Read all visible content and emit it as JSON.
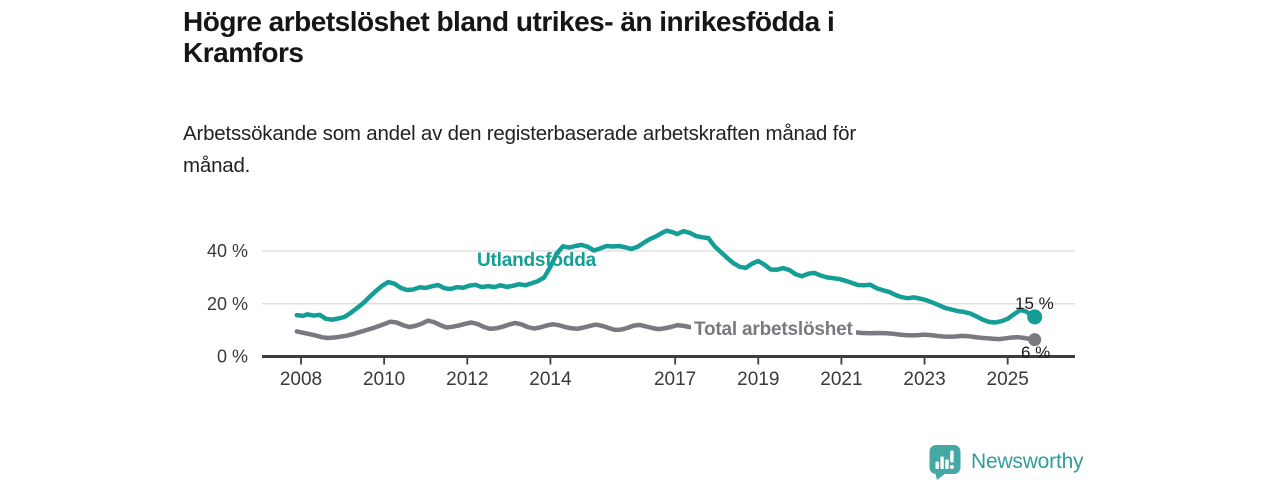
{
  "header": {
    "title_lines": [
      "Högre arbetslöshet bland utrikes- än inrikesfödda i",
      "Kramfors"
    ],
    "subtitle_lines": [
      "Arbetssökande som andel av den registerbaserade arbetskraften månad för",
      "månad."
    ]
  },
  "footer": {
    "brand": "Newsworthy",
    "logo_icon": "bar-chart-speech-bubble-icon",
    "brand_color": "#2e9e9b"
  },
  "chart_data": {
    "type": "line",
    "title": "Högre arbetslöshet bland utrikes- än inrikesfödda i Kramfors",
    "subtitle": "Arbetssökande som andel av den registerbaserade arbetskraften månad för månad.",
    "xlabel": "",
    "ylabel": "",
    "xlim": [
      2007.8,
      2026.6
    ],
    "ylim": [
      0,
      50
    ],
    "grid": "horizontal",
    "grid_color": "#dadada",
    "axis_color": "#3d3d3d",
    "axis_text_color": "#3a3a3a",
    "value_label_color": "#1b1b1b",
    "x_ticks": [
      2008,
      2010,
      2012,
      2014,
      2017,
      2019,
      2021,
      2023,
      2025
    ],
    "y_ticks": [
      {
        "value": 0,
        "label": "0 %"
      },
      {
        "value": 20,
        "label": "20 %"
      },
      {
        "value": 40,
        "label": "40 %"
      }
    ],
    "legend_position": "inline-labels",
    "series": [
      {
        "id": "utlandsfodda",
        "name": "Utlandsfödda",
        "color": "#149e96",
        "end_label": "15 %",
        "end_value": 15,
        "points": [
          [
            2007.9,
            15.7
          ],
          [
            2008.05,
            15.4
          ],
          [
            2008.15,
            16.0
          ],
          [
            2008.3,
            15.5
          ],
          [
            2008.45,
            15.8
          ],
          [
            2008.6,
            14.3
          ],
          [
            2008.75,
            14.0
          ],
          [
            2008.9,
            14.4
          ],
          [
            2009.05,
            15.0
          ],
          [
            2009.2,
            16.6
          ],
          [
            2009.35,
            18.4
          ],
          [
            2009.5,
            20.3
          ],
          [
            2009.65,
            22.6
          ],
          [
            2009.8,
            24.8
          ],
          [
            2009.95,
            26.8
          ],
          [
            2010.1,
            28.2
          ],
          [
            2010.25,
            27.6
          ],
          [
            2010.4,
            26.0
          ],
          [
            2010.55,
            25.2
          ],
          [
            2010.7,
            25.4
          ],
          [
            2010.85,
            26.2
          ],
          [
            2011.0,
            26.0
          ],
          [
            2011.15,
            26.6
          ],
          [
            2011.3,
            27.1
          ],
          [
            2011.45,
            25.9
          ],
          [
            2011.6,
            25.6
          ],
          [
            2011.75,
            26.3
          ],
          [
            2011.9,
            26.1
          ],
          [
            2012.05,
            26.9
          ],
          [
            2012.2,
            27.2
          ],
          [
            2012.35,
            26.3
          ],
          [
            2012.5,
            26.7
          ],
          [
            2012.65,
            26.3
          ],
          [
            2012.8,
            27.0
          ],
          [
            2012.95,
            26.4
          ],
          [
            2013.1,
            26.8
          ],
          [
            2013.25,
            27.4
          ],
          [
            2013.4,
            27.0
          ],
          [
            2013.55,
            27.8
          ],
          [
            2013.7,
            28.6
          ],
          [
            2013.85,
            30.0
          ],
          [
            2014.0,
            34.0
          ],
          [
            2014.15,
            39.0
          ],
          [
            2014.3,
            41.8
          ],
          [
            2014.45,
            41.3
          ],
          [
            2014.6,
            41.9
          ],
          [
            2014.75,
            42.3
          ],
          [
            2014.9,
            41.6
          ],
          [
            2015.05,
            40.2
          ],
          [
            2015.2,
            41.0
          ],
          [
            2015.35,
            41.9
          ],
          [
            2015.5,
            41.7
          ],
          [
            2015.65,
            41.9
          ],
          [
            2015.8,
            41.4
          ],
          [
            2015.95,
            40.8
          ],
          [
            2016.1,
            41.6
          ],
          [
            2016.25,
            43.2
          ],
          [
            2016.4,
            44.6
          ],
          [
            2016.55,
            45.6
          ],
          [
            2016.7,
            47.0
          ],
          [
            2016.8,
            47.7
          ],
          [
            2016.95,
            47.1
          ],
          [
            2017.05,
            46.4
          ],
          [
            2017.2,
            47.5
          ],
          [
            2017.35,
            46.9
          ],
          [
            2017.5,
            45.7
          ],
          [
            2017.65,
            45.2
          ],
          [
            2017.8,
            44.9
          ],
          [
            2017.95,
            41.8
          ],
          [
            2018.1,
            39.6
          ],
          [
            2018.25,
            37.4
          ],
          [
            2018.4,
            35.4
          ],
          [
            2018.55,
            34.0
          ],
          [
            2018.7,
            33.6
          ],
          [
            2018.85,
            35.2
          ],
          [
            2019.0,
            36.2
          ],
          [
            2019.15,
            34.8
          ],
          [
            2019.3,
            33.0
          ],
          [
            2019.45,
            32.9
          ],
          [
            2019.6,
            33.5
          ],
          [
            2019.75,
            32.8
          ],
          [
            2019.9,
            31.2
          ],
          [
            2020.05,
            30.4
          ],
          [
            2020.2,
            31.4
          ],
          [
            2020.35,
            31.7
          ],
          [
            2020.5,
            30.7
          ],
          [
            2020.65,
            30.0
          ],
          [
            2020.8,
            29.7
          ],
          [
            2020.95,
            29.4
          ],
          [
            2021.1,
            28.7
          ],
          [
            2021.25,
            27.9
          ],
          [
            2021.4,
            27.1
          ],
          [
            2021.55,
            27.0
          ],
          [
            2021.7,
            27.2
          ],
          [
            2021.85,
            25.9
          ],
          [
            2022.0,
            25.1
          ],
          [
            2022.15,
            24.5
          ],
          [
            2022.3,
            23.3
          ],
          [
            2022.45,
            22.5
          ],
          [
            2022.6,
            22.1
          ],
          [
            2022.75,
            22.4
          ],
          [
            2022.9,
            21.9
          ],
          [
            2023.05,
            21.3
          ],
          [
            2023.2,
            20.4
          ],
          [
            2023.35,
            19.4
          ],
          [
            2023.5,
            18.4
          ],
          [
            2023.65,
            17.8
          ],
          [
            2023.8,
            17.2
          ],
          [
            2023.95,
            16.9
          ],
          [
            2024.1,
            16.3
          ],
          [
            2024.25,
            15.2
          ],
          [
            2024.4,
            14.0
          ],
          [
            2024.55,
            13.1
          ],
          [
            2024.7,
            12.9
          ],
          [
            2024.85,
            13.4
          ],
          [
            2025.0,
            14.3
          ],
          [
            2025.15,
            16.0
          ],
          [
            2025.3,
            17.6
          ],
          [
            2025.42,
            17.2
          ],
          [
            2025.55,
            16.0
          ],
          [
            2025.65,
            15.0
          ]
        ]
      },
      {
        "id": "total",
        "name": "Total arbetslöshet",
        "color": "#797980",
        "end_label": "6 %",
        "end_value": 6,
        "points": [
          [
            2007.9,
            9.5
          ],
          [
            2008.05,
            9.0
          ],
          [
            2008.2,
            8.5
          ],
          [
            2008.35,
            8.0
          ],
          [
            2008.5,
            7.3
          ],
          [
            2008.65,
            7.0
          ],
          [
            2008.8,
            7.2
          ],
          [
            2008.95,
            7.5
          ],
          [
            2009.1,
            7.9
          ],
          [
            2009.25,
            8.5
          ],
          [
            2009.4,
            9.2
          ],
          [
            2009.55,
            9.9
          ],
          [
            2009.7,
            10.6
          ],
          [
            2009.85,
            11.4
          ],
          [
            2010.0,
            12.3
          ],
          [
            2010.15,
            13.2
          ],
          [
            2010.3,
            12.9
          ],
          [
            2010.45,
            11.9
          ],
          [
            2010.6,
            11.2
          ],
          [
            2010.75,
            11.6
          ],
          [
            2010.9,
            12.4
          ],
          [
            2011.05,
            13.6
          ],
          [
            2011.2,
            13.0
          ],
          [
            2011.35,
            11.9
          ],
          [
            2011.5,
            11.0
          ],
          [
            2011.65,
            11.3
          ],
          [
            2011.8,
            11.8
          ],
          [
            2011.95,
            12.4
          ],
          [
            2012.1,
            12.9
          ],
          [
            2012.25,
            12.3
          ],
          [
            2012.4,
            11.2
          ],
          [
            2012.55,
            10.5
          ],
          [
            2012.7,
            10.7
          ],
          [
            2012.85,
            11.3
          ],
          [
            2013.0,
            12.1
          ],
          [
            2013.15,
            12.7
          ],
          [
            2013.3,
            12.2
          ],
          [
            2013.45,
            11.2
          ],
          [
            2013.6,
            10.6
          ],
          [
            2013.75,
            11.0
          ],
          [
            2013.9,
            11.7
          ],
          [
            2014.05,
            12.2
          ],
          [
            2014.2,
            11.9
          ],
          [
            2014.35,
            11.2
          ],
          [
            2014.5,
            10.7
          ],
          [
            2014.65,
            10.5
          ],
          [
            2014.8,
            11.0
          ],
          [
            2014.95,
            11.6
          ],
          [
            2015.1,
            12.1
          ],
          [
            2015.25,
            11.6
          ],
          [
            2015.4,
            10.8
          ],
          [
            2015.55,
            10.1
          ],
          [
            2015.7,
            10.2
          ],
          [
            2015.85,
            10.8
          ],
          [
            2016.0,
            11.7
          ],
          [
            2016.15,
            12.0
          ],
          [
            2016.3,
            11.4
          ],
          [
            2016.45,
            10.8
          ],
          [
            2016.6,
            10.4
          ],
          [
            2016.75,
            10.7
          ],
          [
            2016.9,
            11.2
          ],
          [
            2017.05,
            11.9
          ],
          [
            2017.2,
            11.6
          ],
          [
            2017.35,
            11.2
          ],
          [
            2017.5,
            10.9
          ],
          [
            2017.7,
            10.5
          ],
          [
            2017.9,
            10.7
          ],
          [
            2018.1,
            10.9
          ],
          [
            2018.3,
            10.3
          ],
          [
            2018.5,
            9.7
          ],
          [
            2018.7,
            9.5
          ],
          [
            2018.9,
            9.8
          ],
          [
            2019.1,
            9.9
          ],
          [
            2019.3,
            9.4
          ],
          [
            2019.5,
            9.0
          ],
          [
            2019.7,
            8.8
          ],
          [
            2019.9,
            9.1
          ],
          [
            2020.1,
            9.5
          ],
          [
            2020.3,
            9.9
          ],
          [
            2020.5,
            9.8
          ],
          [
            2020.7,
            9.6
          ],
          [
            2020.9,
            9.7
          ],
          [
            2021.1,
            9.5
          ],
          [
            2021.3,
            9.2
          ],
          [
            2021.5,
            8.9
          ],
          [
            2021.7,
            8.8
          ],
          [
            2021.9,
            8.9
          ],
          [
            2022.1,
            8.8
          ],
          [
            2022.25,
            8.6
          ],
          [
            2022.4,
            8.3
          ],
          [
            2022.55,
            8.1
          ],
          [
            2022.7,
            8.0
          ],
          [
            2022.85,
            8.1
          ],
          [
            2023.0,
            8.3
          ],
          [
            2023.15,
            8.1
          ],
          [
            2023.3,
            7.8
          ],
          [
            2023.45,
            7.6
          ],
          [
            2023.6,
            7.5
          ],
          [
            2023.75,
            7.6
          ],
          [
            2023.9,
            7.8
          ],
          [
            2024.05,
            7.7
          ],
          [
            2024.2,
            7.4
          ],
          [
            2024.35,
            7.1
          ],
          [
            2024.5,
            6.9
          ],
          [
            2024.65,
            6.7
          ],
          [
            2024.8,
            6.6
          ],
          [
            2024.95,
            6.9
          ],
          [
            2025.1,
            7.2
          ],
          [
            2025.25,
            7.3
          ],
          [
            2025.4,
            7.0
          ],
          [
            2025.55,
            6.6
          ],
          [
            2025.65,
            6.4
          ]
        ]
      }
    ]
  }
}
